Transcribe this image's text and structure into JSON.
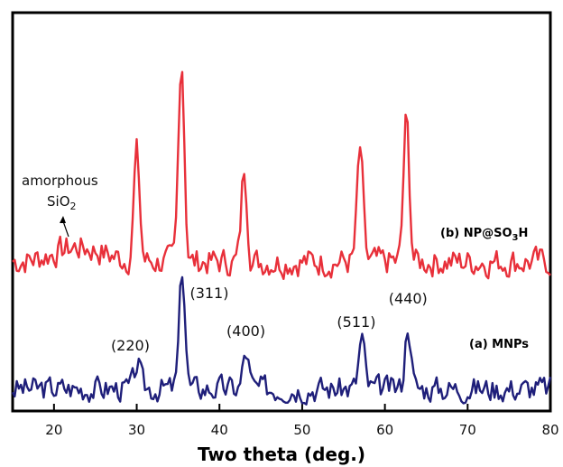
{
  "chart_data": {
    "type": "line",
    "xlabel": "Two theta (deg.)",
    "ylabel": "",
    "xlim": [
      15,
      80
    ],
    "ylim": [
      0,
      100
    ],
    "x_ticks": [
      "20",
      "30",
      "40",
      "50",
      "60",
      "70",
      "80"
    ],
    "grid": false,
    "colors": {
      "series_a": "#1f1f7a",
      "series_b": "#e8303a"
    },
    "series": [
      {
        "label_prefix": "(a) MNPs",
        "peaks": [
          {
            "x": 30.1,
            "y": 17,
            "label": "(220)"
          },
          {
            "x": 35.5,
            "y": 81,
            "label": "(311)"
          },
          {
            "x": 43.2,
            "y": 25,
            "label": "(400)"
          },
          {
            "x": 57.2,
            "y": 35,
            "label": "(511)"
          },
          {
            "x": 62.8,
            "y": 45,
            "label": "(440)"
          }
        ]
      },
      {
        "label_prefix": "(b) NP@SO",
        "label_sub": "3",
        "label_suffix": "H",
        "peaks": [
          {
            "x": 30.0,
            "y": 75,
            "label": ""
          },
          {
            "x": 35.4,
            "y": 143,
            "label": ""
          },
          {
            "x": 43.0,
            "y": 65,
            "label": ""
          },
          {
            "x": 57.0,
            "y": 78,
            "label": ""
          },
          {
            "x": 62.6,
            "y": 99,
            "label": ""
          }
        ]
      }
    ],
    "annotation": {
      "line1": "amorphous",
      "line2_main": "SiO",
      "line2_sub": "2"
    }
  }
}
